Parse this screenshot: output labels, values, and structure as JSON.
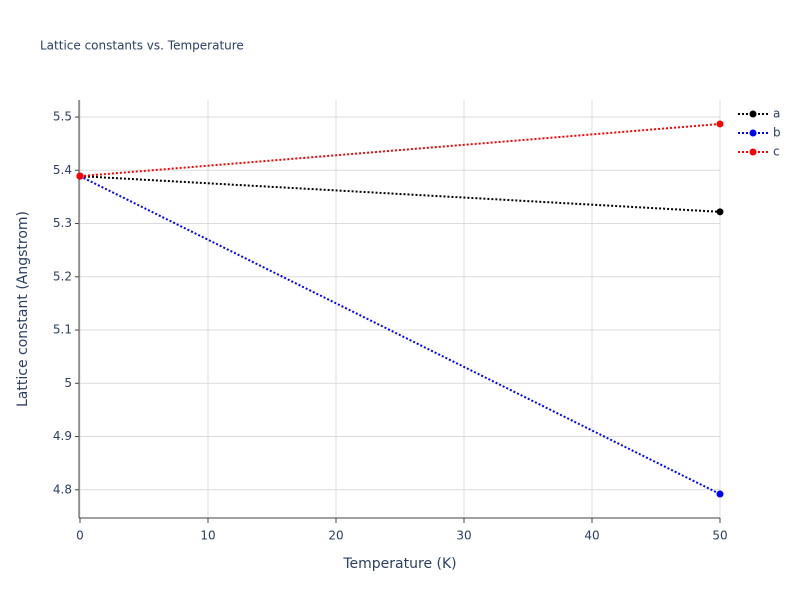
{
  "chart_data": {
    "type": "line",
    "title": "Lattice constants vs. Temperature",
    "x_label": "Temperature (K)",
    "y_label": "Lattice constant (Angstrom)",
    "x": [
      0,
      50
    ],
    "series": [
      {
        "name": "a",
        "color": "#000000",
        "values": [
          5.389,
          5.322
        ]
      },
      {
        "name": "b",
        "color": "#0000ff",
        "values": [
          5.389,
          4.792
        ]
      },
      {
        "name": "c",
        "color": "#ff0000",
        "values": [
          5.389,
          5.487
        ]
      }
    ],
    "xlim": [
      0,
      50
    ],
    "xticks": [
      0,
      10,
      20,
      30,
      40,
      50
    ],
    "ylim": [
      4.747,
      5.532
    ],
    "yticks": [
      4.8,
      4.9,
      5,
      5.1,
      5.2,
      5.3,
      5.4,
      5.5
    ],
    "grid": true,
    "legend": "right",
    "line_style": "dotted"
  }
}
